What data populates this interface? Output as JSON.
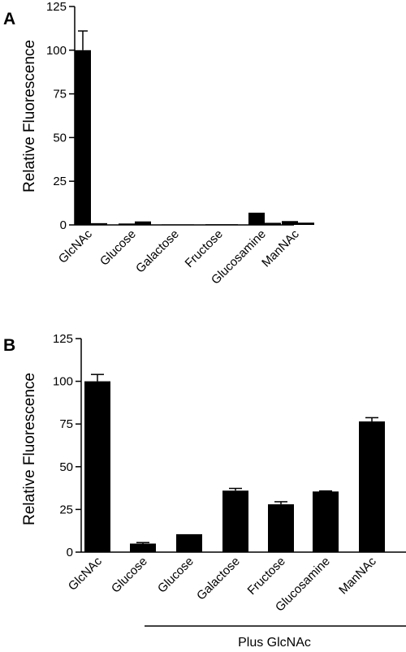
{
  "chart_data": [
    {
      "type": "bar",
      "panel_label": "A",
      "ylabel": "Relative Fluorescence",
      "ylim": [
        0,
        125
      ],
      "yticks": [
        0,
        25,
        50,
        75,
        100,
        125
      ],
      "categories": [
        "GlcNAc",
        "Glucose",
        "Galactose",
        "Fructose",
        "Glucosamine",
        "ManNAc"
      ],
      "bar_color": "#000000",
      "series": [
        {
          "values": [
            100,
            0.8,
            0.3,
            0.4,
            7,
            2.2
          ],
          "errors": [
            11,
            0,
            0,
            0,
            0,
            0
          ]
        },
        {
          "values": [
            1,
            2,
            0.3,
            0.4,
            1.2,
            1.3
          ],
          "errors": [
            0,
            0,
            0,
            0,
            0,
            0
          ]
        }
      ]
    },
    {
      "type": "bar",
      "panel_label": "B",
      "ylabel": "Relative Fluorescence",
      "ylim": [
        0,
        125
      ],
      "yticks": [
        0,
        25,
        50,
        75,
        100,
        125
      ],
      "categories": [
        "GlcNAc",
        "Glucose",
        "Glucose",
        "Galactose",
        "Fructose",
        "Glucosamine",
        "ManNAc"
      ],
      "bar_color": "#000000",
      "series": [
        {
          "values": [
            100,
            5,
            10.5,
            36,
            28,
            35.5,
            76.5
          ],
          "errors": [
            4,
            0.6,
            0,
            1.3,
            1.5,
            0.3,
            2.2
          ]
        }
      ],
      "group_label": "Plus GlcNAc"
    }
  ]
}
